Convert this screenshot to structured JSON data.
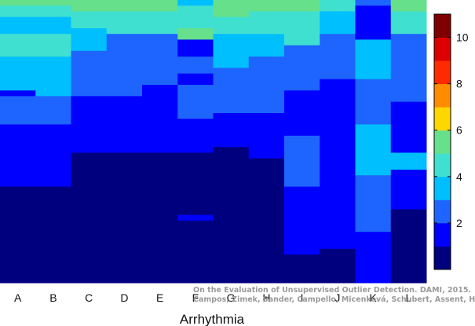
{
  "chart_data": {
    "type": "heatmap",
    "title": "",
    "xlabel": "Arrhythmia",
    "ylabel": "",
    "columns": [
      "A",
      "B",
      "C",
      "D",
      "E",
      "F",
      "G",
      "H",
      "I",
      "J",
      "K",
      "L"
    ],
    "n_rows": 50,
    "colorbar": {
      "range": [
        0,
        11
      ],
      "ticks": [
        2,
        4,
        6,
        8,
        10
      ],
      "levels": [
        "#00007f",
        "#0000ff",
        "#1e64ff",
        "#00bfff",
        "#40e0d0",
        "#66e08a",
        "#ffd700",
        "#ff8c00",
        "#ff2a00",
        "#dd0000",
        "#7f0000"
      ]
    },
    "columns_data": [
      {
        "name": "A",
        "segments": [
          {
            "start": 0,
            "end": 1,
            "value": 5.5
          },
          {
            "start": 1,
            "end": 3,
            "value": 4.3
          },
          {
            "start": 3,
            "end": 6,
            "value": 3.2
          },
          {
            "start": 6,
            "end": 10,
            "value": 4.1
          },
          {
            "start": 10,
            "end": 16,
            "value": 3.0
          },
          {
            "start": 16,
            "end": 17,
            "value": 1.6
          },
          {
            "start": 17,
            "end": 22,
            "value": 2.7
          },
          {
            "start": 22,
            "end": 26,
            "value": 1.8
          },
          {
            "start": 26,
            "end": 30,
            "value": 1.5
          },
          {
            "start": 30,
            "end": 33,
            "value": 1.2
          },
          {
            "start": 33,
            "end": 50,
            "value": 0.4
          }
        ]
      },
      {
        "name": "B",
        "segments": [
          {
            "start": 0,
            "end": 1,
            "value": 5.5
          },
          {
            "start": 1,
            "end": 3,
            "value": 4.2
          },
          {
            "start": 3,
            "end": 6,
            "value": 3.2
          },
          {
            "start": 6,
            "end": 10,
            "value": 4.0
          },
          {
            "start": 10,
            "end": 17,
            "value": 3.0
          },
          {
            "start": 17,
            "end": 22,
            "value": 2.7
          },
          {
            "start": 22,
            "end": 26,
            "value": 1.8
          },
          {
            "start": 26,
            "end": 30,
            "value": 1.5
          },
          {
            "start": 30,
            "end": 33,
            "value": 1.2
          },
          {
            "start": 33,
            "end": 50,
            "value": 0.4
          }
        ]
      },
      {
        "name": "C",
        "segments": [
          {
            "start": 0,
            "end": 2,
            "value": 5.5
          },
          {
            "start": 2,
            "end": 5,
            "value": 4.1
          },
          {
            "start": 5,
            "end": 9,
            "value": 3.3
          },
          {
            "start": 9,
            "end": 17,
            "value": 2.9
          },
          {
            "start": 17,
            "end": 22,
            "value": 1.9
          },
          {
            "start": 22,
            "end": 27,
            "value": 1.4
          },
          {
            "start": 27,
            "end": 50,
            "value": 0.4
          }
        ]
      },
      {
        "name": "D",
        "segments": [
          {
            "start": 0,
            "end": 2,
            "value": 5.5
          },
          {
            "start": 2,
            "end": 6,
            "value": 4.5
          },
          {
            "start": 6,
            "end": 17,
            "value": 2.9
          },
          {
            "start": 17,
            "end": 27,
            "value": 1.5
          },
          {
            "start": 27,
            "end": 50,
            "value": 0.4
          }
        ]
      },
      {
        "name": "E",
        "segments": [
          {
            "start": 0,
            "end": 2,
            "value": 5.4
          },
          {
            "start": 2,
            "end": 6,
            "value": 4.3
          },
          {
            "start": 6,
            "end": 15,
            "value": 2.8
          },
          {
            "start": 15,
            "end": 17,
            "value": 1.8
          },
          {
            "start": 17,
            "end": 27,
            "value": 1.4
          },
          {
            "start": 27,
            "end": 50,
            "value": 0.4
          }
        ]
      },
      {
        "name": "F",
        "segments": [
          {
            "start": 0,
            "end": 1,
            "value": 3.1
          },
          {
            "start": 1,
            "end": 5,
            "value": 4.6
          },
          {
            "start": 5,
            "end": 7,
            "value": 5.7
          },
          {
            "start": 7,
            "end": 10,
            "value": 1.6
          },
          {
            "start": 10,
            "end": 13,
            "value": 2.9
          },
          {
            "start": 13,
            "end": 15,
            "value": 1.4
          },
          {
            "start": 15,
            "end": 21,
            "value": 2.5
          },
          {
            "start": 21,
            "end": 27,
            "value": 1.4
          },
          {
            "start": 27,
            "end": 38,
            "value": 0.5
          },
          {
            "start": 38,
            "end": 39,
            "value": 1.8
          },
          {
            "start": 39,
            "end": 50,
            "value": 0.4
          }
        ]
      },
      {
        "name": "G",
        "segments": [
          {
            "start": 0,
            "end": 3,
            "value": 5.2
          },
          {
            "start": 3,
            "end": 6,
            "value": 4.2
          },
          {
            "start": 6,
            "end": 12,
            "value": 3.0
          },
          {
            "start": 12,
            "end": 20,
            "value": 2.6
          },
          {
            "start": 20,
            "end": 26,
            "value": 1.5
          },
          {
            "start": 26,
            "end": 50,
            "value": 0.4
          }
        ]
      },
      {
        "name": "H",
        "segments": [
          {
            "start": 0,
            "end": 2,
            "value": 5.3
          },
          {
            "start": 2,
            "end": 6,
            "value": 4.2
          },
          {
            "start": 6,
            "end": 10,
            "value": 3.3
          },
          {
            "start": 10,
            "end": 20,
            "value": 2.4
          },
          {
            "start": 20,
            "end": 28,
            "value": 1.3
          },
          {
            "start": 28,
            "end": 44,
            "value": 0.8
          },
          {
            "start": 44,
            "end": 50,
            "value": 0.4
          }
        ]
      },
      {
        "name": "I",
        "segments": [
          {
            "start": 0,
            "end": 2,
            "value": 5.0
          },
          {
            "start": 2,
            "end": 8,
            "value": 4.0
          },
          {
            "start": 8,
            "end": 16,
            "value": 2.5
          },
          {
            "start": 16,
            "end": 24,
            "value": 1.8
          },
          {
            "start": 24,
            "end": 33,
            "value": 2.2
          },
          {
            "start": 33,
            "end": 45,
            "value": 1.3
          },
          {
            "start": 45,
            "end": 50,
            "value": 0.4
          }
        ]
      },
      {
        "name": "J",
        "segments": [
          {
            "start": 0,
            "end": 2,
            "value": 4.8
          },
          {
            "start": 2,
            "end": 6,
            "value": 3.9
          },
          {
            "start": 6,
            "end": 14,
            "value": 2.5
          },
          {
            "start": 14,
            "end": 22,
            "value": 1.6
          },
          {
            "start": 22,
            "end": 32,
            "value": 1.9
          },
          {
            "start": 32,
            "end": 44,
            "value": 1.1
          },
          {
            "start": 44,
            "end": 50,
            "value": 0.4
          }
        ]
      },
      {
        "name": "K",
        "segments": [
          {
            "start": 0,
            "end": 1,
            "value": 2.6
          },
          {
            "start": 1,
            "end": 7,
            "value": 1.8
          },
          {
            "start": 7,
            "end": 14,
            "value": 3.6
          },
          {
            "start": 14,
            "end": 22,
            "value": 2.0
          },
          {
            "start": 22,
            "end": 31,
            "value": 3.2
          },
          {
            "start": 31,
            "end": 41,
            "value": 2.6
          },
          {
            "start": 41,
            "end": 50,
            "value": 1.2
          }
        ]
      },
      {
        "name": "L",
        "segments": [
          {
            "start": 0,
            "end": 2,
            "value": 5.2
          },
          {
            "start": 2,
            "end": 6,
            "value": 4.0
          },
          {
            "start": 6,
            "end": 12,
            "value": 2.9
          },
          {
            "start": 12,
            "end": 18,
            "value": 2.2
          },
          {
            "start": 18,
            "end": 27,
            "value": 1.4
          },
          {
            "start": 27,
            "end": 30,
            "value": 3.8
          },
          {
            "start": 30,
            "end": 37,
            "value": 1.7
          },
          {
            "start": 37,
            "end": 50,
            "value": 0.4
          }
        ]
      }
    ],
    "grid": false,
    "legend": "colorbar-right"
  },
  "watermark": {
    "line1": "On the Evaluation of Unsupervised Outlier Detection. DAMI, 2015.",
    "line2": "Campos, Zimek, Sander, Campello, Micenková, Schubert, Assent, Houle"
  }
}
